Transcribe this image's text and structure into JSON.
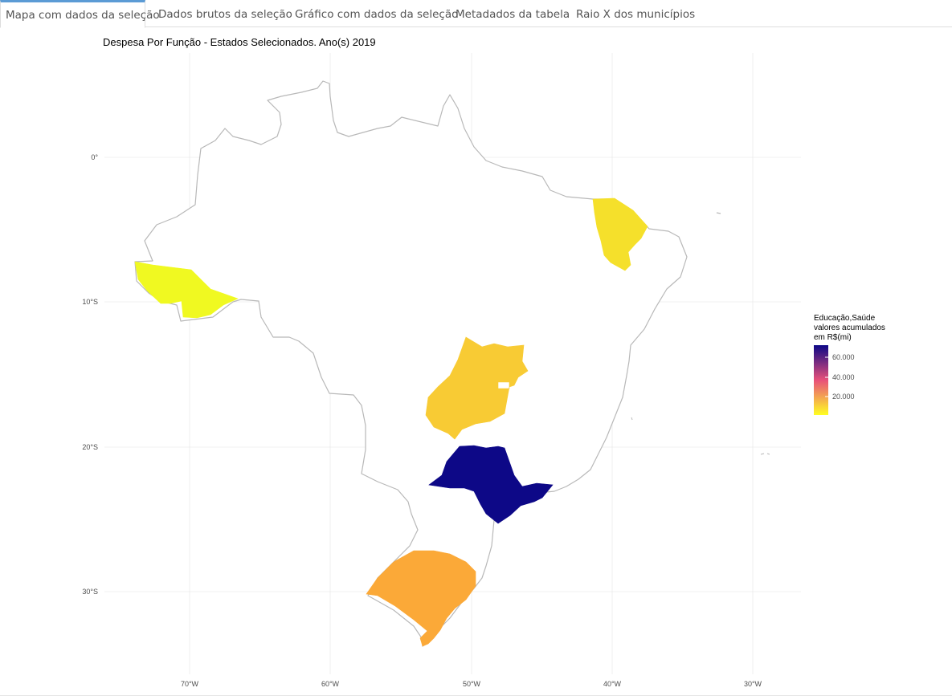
{
  "tabs": [
    {
      "label": "Mapa com dados da seleção",
      "active": true
    },
    {
      "label": "Dados brutos da seleção",
      "active": false
    },
    {
      "label": "Gráfico com dados da seleção",
      "active": false
    },
    {
      "label": "Metadados da tabela",
      "active": false
    },
    {
      "label": "Raio X dos municípios",
      "active": false
    }
  ],
  "map": {
    "title": "Despesa Por Função - Estados Selecionados. Ano(s) 2019",
    "lon_ticks": [
      "70°W",
      "60°W",
      "50°W",
      "40°W",
      "30°W"
    ],
    "lat_ticks": [
      "0°",
      "10°S",
      "20°S",
      "30°S"
    ],
    "legend": {
      "title_lines": [
        "Educação,Saúde",
        "valores acumulados",
        "em R$(mi)"
      ],
      "ticks": [
        "60.000",
        "40.000",
        "20.000"
      ],
      "colors": {
        "low": "#ffff22",
        "mid": "#e8507a",
        "high": "#0d0887"
      }
    },
    "colors": {
      "country_outline": "#b8b8b8",
      "grid": "#ebebeb",
      "acre": "#f0f921",
      "ceara": "#f5e02b",
      "goias": "#f8cb34",
      "sao_paulo": "#0d0887",
      "rio_grande_do_sul": "#fba938"
    },
    "regions": [
      {
        "name": "Acre"
      },
      {
        "name": "Ceará"
      },
      {
        "name": "Goiás"
      },
      {
        "name": "São Paulo"
      },
      {
        "name": "Rio Grande do Sul"
      }
    ]
  }
}
